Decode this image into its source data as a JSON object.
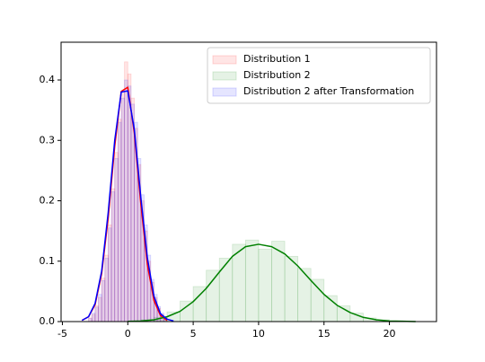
{
  "chart_data": {
    "type": "histogram",
    "xlim": [
      -5.1,
      23.6
    ],
    "ylim": [
      0,
      0.4625
    ],
    "xticks": [
      -5,
      0,
      5,
      10,
      15,
      20
    ],
    "yticks": [
      {
        "value": 0,
        "label": "0.0"
      },
      0.1,
      0.2,
      0.3,
      0.4
    ],
    "legend": "upper right",
    "series": [
      {
        "name": "Distribution 1",
        "color": "red",
        "bins": [
          -3,
          -2.75,
          -2.5,
          -2.25,
          -2,
          -1.75,
          -1.5,
          -1.25,
          -1,
          -0.75,
          -0.5,
          -0.25,
          0,
          0.25,
          0.5,
          0.75,
          1,
          1.25,
          1.5,
          1.75,
          2,
          2.25,
          2.5,
          2.75,
          3
        ],
        "values": [
          0.006,
          0.012,
          0.026,
          0.04,
          0.072,
          0.11,
          0.16,
          0.22,
          0.28,
          0.335,
          0.38,
          0.43,
          0.41,
          0.37,
          0.32,
          0.26,
          0.2,
          0.15,
          0.1,
          0.065,
          0.04,
          0.022,
          0.012,
          0.005
        ],
        "kde_x": [
          -3.5,
          -3,
          -2.5,
          -2,
          -1.5,
          -1,
          -0.5,
          0,
          0.5,
          1,
          1.5,
          2,
          2.5,
          3
        ],
        "kde_y": [
          0.002,
          0.008,
          0.028,
          0.079,
          0.171,
          0.29,
          0.381,
          0.388,
          0.312,
          0.194,
          0.094,
          0.035,
          0.01,
          0.002
        ]
      },
      {
        "name": "Distribution 2",
        "color": "green",
        "bins": [
          0,
          1,
          2,
          3,
          4,
          5,
          6,
          7,
          8,
          9,
          10,
          11,
          12,
          13,
          14,
          15,
          16,
          17,
          18,
          19,
          20,
          21,
          22
        ],
        "values": [
          0.001,
          0.003,
          0.007,
          0.016,
          0.034,
          0.058,
          0.085,
          0.105,
          0.128,
          0.135,
          0.12,
          0.133,
          0.108,
          0.088,
          0.07,
          0.043,
          0.026,
          0.014,
          0.006,
          0.003,
          0.001,
          0.001
        ],
        "kde_x": [
          0,
          1,
          2,
          3,
          4,
          5,
          6,
          7,
          8,
          9,
          10,
          11,
          12,
          13,
          14,
          15,
          16,
          17,
          18,
          19,
          20,
          21,
          22
        ],
        "kde_y": [
          0.0003,
          0.001,
          0.003,
          0.008,
          0.017,
          0.033,
          0.055,
          0.082,
          0.108,
          0.124,
          0.128,
          0.124,
          0.112,
          0.092,
          0.068,
          0.045,
          0.027,
          0.015,
          0.007,
          0.003,
          0.001,
          0.0005,
          0
        ]
      },
      {
        "name": "Distribution 2 after Transformation",
        "color": "blue",
        "bins": [
          -3,
          -2.75,
          -2.5,
          -2.25,
          -2,
          -1.75,
          -1.5,
          -1.25,
          -1,
          -0.75,
          -0.5,
          -0.25,
          0,
          0.25,
          0.5,
          0.75,
          1,
          1.25,
          1.5,
          1.75,
          2,
          2.25,
          2.5,
          2.75,
          3
        ],
        "values": [
          0.005,
          0.014,
          0.024,
          0.045,
          0.068,
          0.105,
          0.155,
          0.215,
          0.27,
          0.33,
          0.37,
          0.4,
          0.39,
          0.36,
          0.33,
          0.27,
          0.21,
          0.16,
          0.11,
          0.07,
          0.045,
          0.025,
          0.014,
          0.006
        ],
        "kde_x": [
          -3.5,
          -3,
          -2.5,
          -2,
          -1.5,
          -1,
          -0.5,
          0,
          0.5,
          1,
          1.5,
          2,
          2.5,
          3,
          3.5
        ],
        "kde_y": [
          0.002,
          0.008,
          0.03,
          0.083,
          0.18,
          0.3,
          0.38,
          0.382,
          0.318,
          0.205,
          0.105,
          0.042,
          0.013,
          0.004,
          0.001
        ]
      }
    ]
  }
}
